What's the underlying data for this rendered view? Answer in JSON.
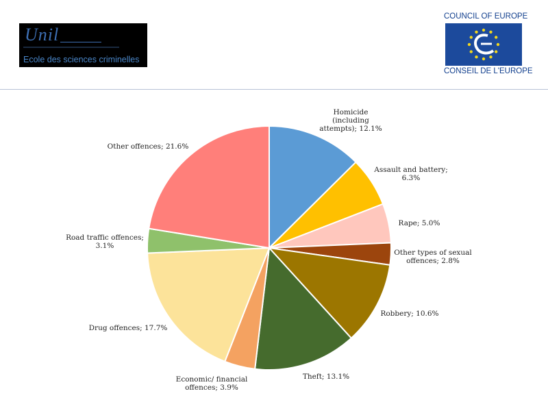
{
  "logos": {
    "unil_word": "Unil",
    "unil_subtitle": "Ecole des sciences criminelles",
    "coe_top": "COUNCIL OF EUROPE",
    "coe_bottom": "CONSEIL DE L'EUROPE"
  },
  "colors": {
    "coe_blue": "#1c4a9c",
    "coe_star": "#f2d71c",
    "divider": "#b7c1d6"
  },
  "chart_data": {
    "type": "pie",
    "title": "",
    "start": "12 o'clock, clockwise",
    "slices": [
      {
        "label": [
          "Homicide",
          "(including",
          "attempts); 12.1%"
        ],
        "value": 12.1,
        "color": "#5b9bd5"
      },
      {
        "label": [
          "Assault and battery;",
          "6.3%"
        ],
        "value": 6.3,
        "color": "#ffc000"
      },
      {
        "label": [
          "Rape; 5.0%"
        ],
        "value": 5.0,
        "color": "#ffc7bd"
      },
      {
        "label": [
          "Other types of sexual",
          "offences; 2.8%"
        ],
        "value": 2.8,
        "color": "#9c450d"
      },
      {
        "label": [
          "Robbery; 10.6%"
        ],
        "value": 10.6,
        "color": "#9c7600"
      },
      {
        "label": [
          "Theft; 13.1%"
        ],
        "value": 13.1,
        "color": "#456b2d"
      },
      {
        "label": [
          "Economic/ financial",
          "offences; 3.9%"
        ],
        "value": 3.9,
        "color": "#f4a261"
      },
      {
        "label": [
          "Drug offences; 17.7%"
        ],
        "value": 17.7,
        "color": "#fce39a"
      },
      {
        "label": [
          "Road traffic offences;",
          "3.1%"
        ],
        "value": 3.1,
        "color": "#8fc16b"
      },
      {
        "label": [
          "Other offences; 21.6%"
        ],
        "value": 21.6,
        "color": "#ff7f7a"
      }
    ]
  }
}
